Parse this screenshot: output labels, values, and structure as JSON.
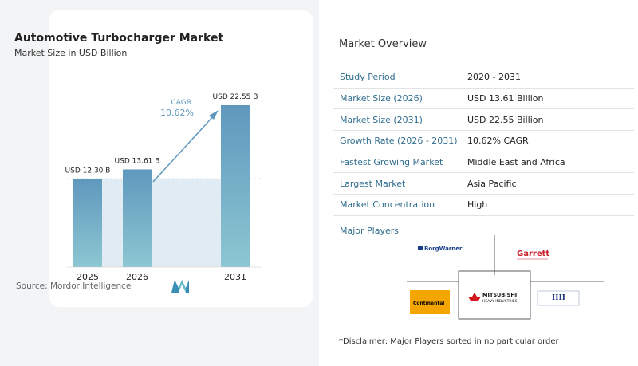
{
  "chart": {
    "title": "Automotive Turbocharger Market",
    "subtitle": "Market Size in USD Billion",
    "source": "Source:  Mordor Intelligence",
    "cagr_label": "CAGR",
    "cagr_value": "10.62%"
  },
  "chart_data": {
    "type": "bar",
    "categories": [
      "2025",
      "2026",
      "2031"
    ],
    "values": [
      12.3,
      13.61,
      22.55
    ],
    "data_labels": [
      "USD 12.30 B",
      "USD 13.61 B",
      "USD 22.55 B"
    ],
    "title": "Automotive Turbocharger Market",
    "subtitle": "Market Size in USD Billion",
    "xlabel": "",
    "ylabel": "",
    "ylim": [
      0,
      23
    ],
    "grid": false,
    "bar_color": "#5f98bd",
    "bar_color_end": "#8cc7d2"
  },
  "overview": {
    "title": "Market Overview",
    "rows": [
      {
        "label": "Study Period",
        "value": "2020 - 2031"
      },
      {
        "label": "Market Size (2026)",
        "value": "USD 13.61 Billion"
      },
      {
        "label": "Market Size (2031)",
        "value": "USD 22.55 Billion"
      },
      {
        "label": "Growth Rate (2026 - 2031)",
        "value": "10.62% CAGR"
      },
      {
        "label": "Fastest Growing Market",
        "value": "Middle East and Africa"
      },
      {
        "label": "Largest Market",
        "value": "Asia Pacific"
      },
      {
        "label": "Market Concentration",
        "value": "High"
      }
    ]
  },
  "players": {
    "title": "Major Players",
    "logos": [
      "BorgWarner",
      "Garrett",
      "Continental",
      "MITSUBISHI",
      "HEAVY INDUSTRIES",
      "IHI"
    ]
  },
  "disclaimer": "*Disclaimer: Major Players sorted in no particular order",
  "colors": {
    "accent": "#2f6d8f",
    "bar": "#5f98bd",
    "bar_light": "#8cc7d2",
    "shade": "#dbe7f1"
  }
}
